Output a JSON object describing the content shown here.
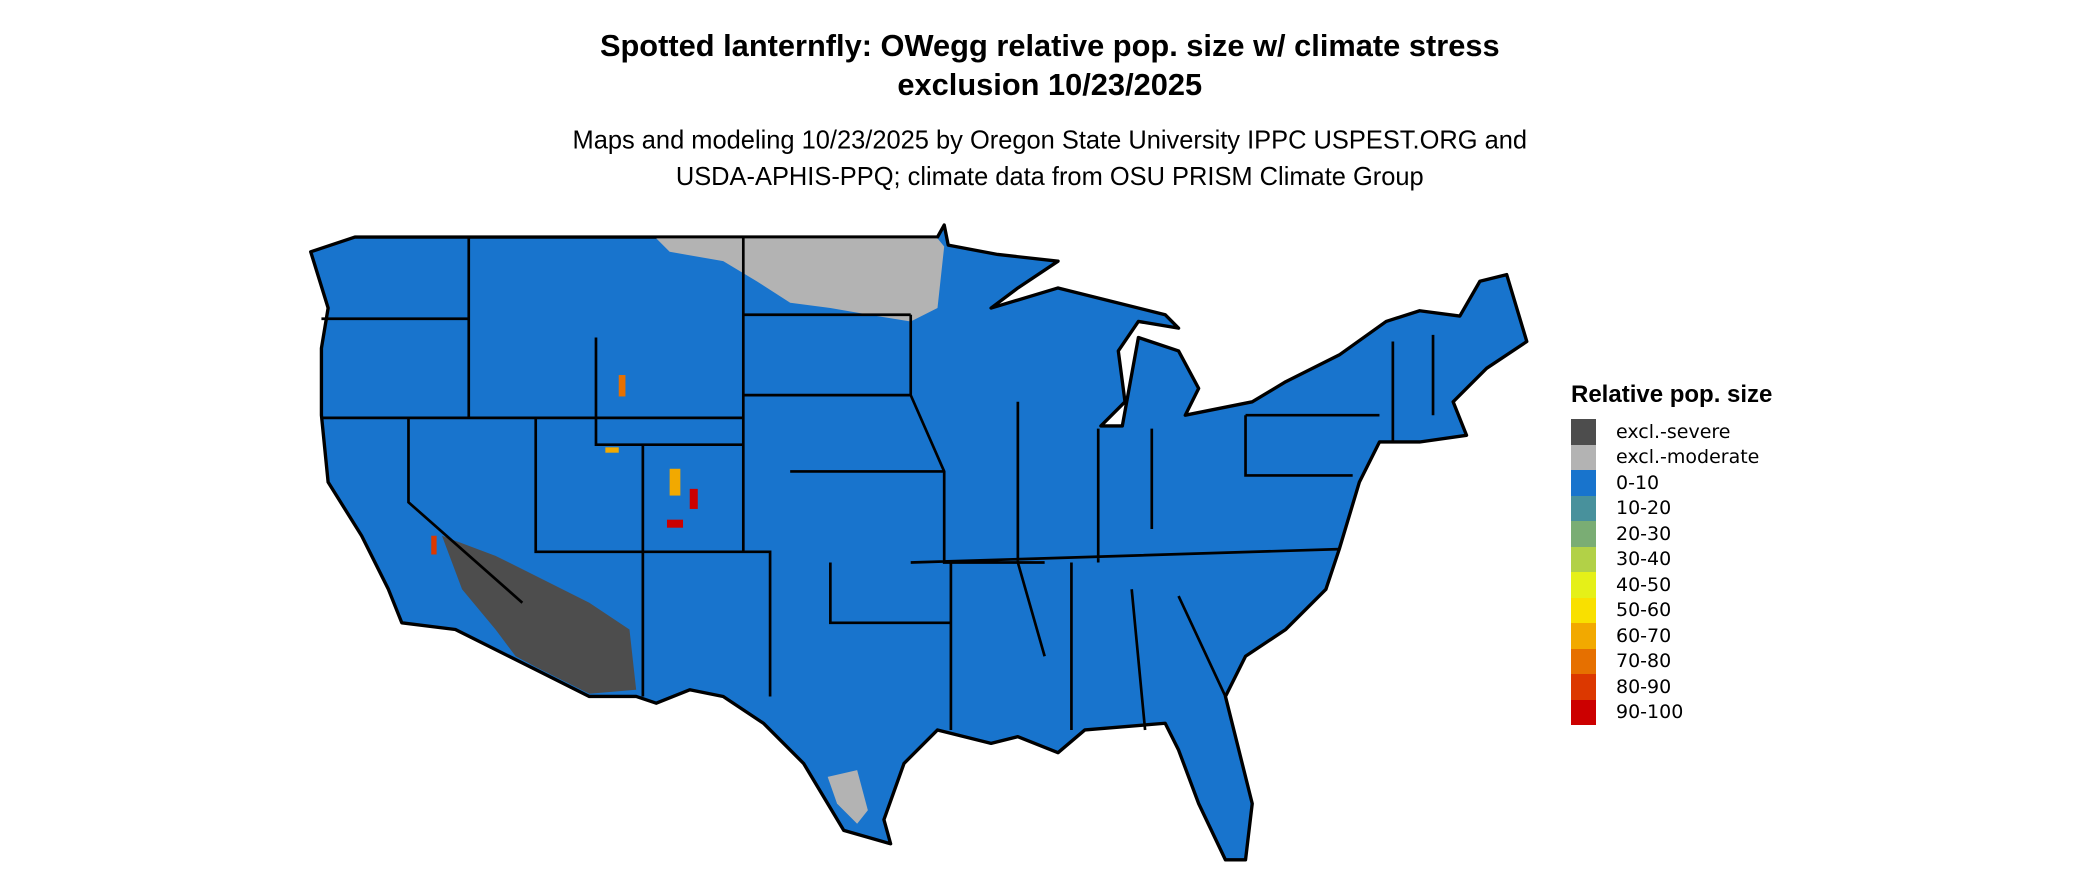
{
  "title": {
    "line1": "Spotted lanternfly: OWegg relative pop. size w/ climate stress",
    "line2": "exclusion 10/23/2025"
  },
  "subtitle": {
    "line1": "Maps and modeling 10/23/2025 by Oregon State University IPPC USPEST.ORG and",
    "line2": "USDA-APHIS-PPQ; climate data from OSU PRISM Climate Group"
  },
  "legend": {
    "title": "Relative pop. size",
    "items": [
      {
        "label": "excl.-severe",
        "color": "#4d4d4d"
      },
      {
        "label": "excl.-moderate",
        "color": "#b3b3b3"
      },
      {
        "label": "0-10",
        "color": "#1874cd"
      },
      {
        "label": "10-20",
        "color": "#48919c"
      },
      {
        "label": "20-30",
        "color": "#7aad74"
      },
      {
        "label": "30-40",
        "color": "#b2d147"
      },
      {
        "label": "40-50",
        "color": "#e5f018"
      },
      {
        "label": "50-60",
        "color": "#f9e000"
      },
      {
        "label": "60-70",
        "color": "#f2a900"
      },
      {
        "label": "70-80",
        "color": "#e67000"
      },
      {
        "label": "80-90",
        "color": "#dc3800"
      },
      {
        "label": "90-100",
        "color": "#cc0000"
      }
    ]
  }
}
